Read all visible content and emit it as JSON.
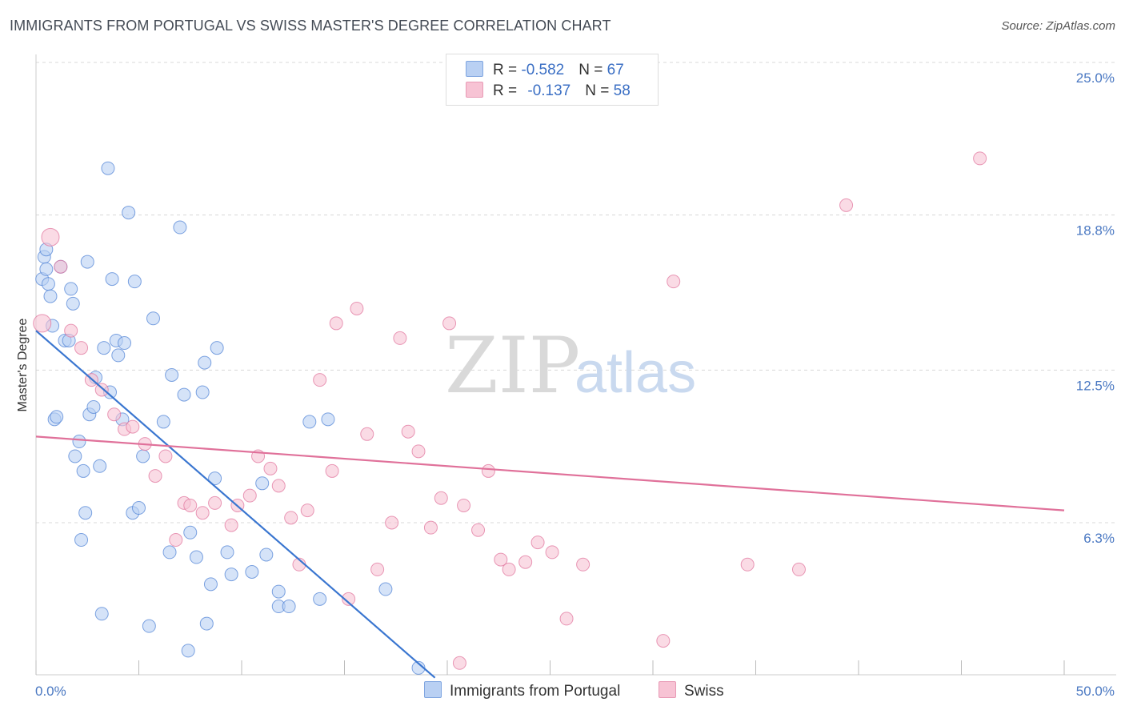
{
  "title": "IMMIGRANTS FROM PORTUGAL VS SWISS MASTER'S DEGREE CORRELATION CHART",
  "source": "Source: ZipAtlas.com",
  "watermark": {
    "zip": "ZIP",
    "atlas": "atlas"
  },
  "colors": {
    "series1": "#4a7fd4",
    "series1_fill": "#b9d0f3",
    "series2": "#e0719a",
    "series2_fill": "#f7c3d4",
    "grid": "#d8d8d8",
    "axis_text": "#4a78c2"
  },
  "legend": {
    "rows": [
      {
        "r_label": "R = ",
        "r_value": "-0.582",
        "n_label": "N = ",
        "n_value": "67"
      },
      {
        "r_label": "R = ",
        "r_value": "-0.137",
        "n_label": "N = ",
        "n_value": "58"
      }
    ]
  },
  "chart_data": {
    "type": "scatter",
    "xlabel": "",
    "ylabel": "Master's Degree",
    "xlim": [
      0,
      50
    ],
    "ylim": [
      0,
      26
    ],
    "x_tick_labels": [
      "0.0%",
      "50.0%"
    ],
    "y_ticks": [
      6.3,
      12.5,
      18.8,
      25.0
    ],
    "y_tick_labels": [
      "6.3%",
      "12.5%",
      "18.8%",
      "25.0%"
    ],
    "grid": "horizontal dashed",
    "legend_placement": "top-center",
    "series": [
      {
        "name": "Immigrants from Portugal",
        "r": -0.582,
        "n": 67,
        "trend": {
          "x": [
            0,
            19.4
          ],
          "y": [
            14.1,
            0
          ]
        },
        "points": [
          [
            0.3,
            16.2
          ],
          [
            0.4,
            17.1
          ],
          [
            0.5,
            17.4
          ],
          [
            0.5,
            16.6
          ],
          [
            0.6,
            16.0
          ],
          [
            0.7,
            15.5
          ],
          [
            0.8,
            14.3
          ],
          [
            0.9,
            10.5
          ],
          [
            1.0,
            10.6
          ],
          [
            1.2,
            16.7
          ],
          [
            1.4,
            13.7
          ],
          [
            1.6,
            13.7
          ],
          [
            1.7,
            15.8
          ],
          [
            1.8,
            15.2
          ],
          [
            1.9,
            9.0
          ],
          [
            2.1,
            9.6
          ],
          [
            2.2,
            5.6
          ],
          [
            2.3,
            8.4
          ],
          [
            2.4,
            6.7
          ],
          [
            2.5,
            16.9
          ],
          [
            2.6,
            10.7
          ],
          [
            2.8,
            11.0
          ],
          [
            2.9,
            12.2
          ],
          [
            3.1,
            8.6
          ],
          [
            3.2,
            2.6
          ],
          [
            3.3,
            13.4
          ],
          [
            3.5,
            20.7
          ],
          [
            3.6,
            11.6
          ],
          [
            3.7,
            16.2
          ],
          [
            3.9,
            13.7
          ],
          [
            4.0,
            13.1
          ],
          [
            4.2,
            10.5
          ],
          [
            4.3,
            13.6
          ],
          [
            4.5,
            18.9
          ],
          [
            4.7,
            6.7
          ],
          [
            4.8,
            16.1
          ],
          [
            5.0,
            6.9
          ],
          [
            5.2,
            9.0
          ],
          [
            5.5,
            2.1
          ],
          [
            5.7,
            14.6
          ],
          [
            6.2,
            10.4
          ],
          [
            6.5,
            5.1
          ],
          [
            6.6,
            12.3
          ],
          [
            7.0,
            18.3
          ],
          [
            7.2,
            11.5
          ],
          [
            7.4,
            1.1
          ],
          [
            7.5,
            5.9
          ],
          [
            7.8,
            4.9
          ],
          [
            8.1,
            11.6
          ],
          [
            8.2,
            12.8
          ],
          [
            8.3,
            2.2
          ],
          [
            8.5,
            3.8
          ],
          [
            8.7,
            8.1
          ],
          [
            8.8,
            13.4
          ],
          [
            9.3,
            5.1
          ],
          [
            9.5,
            4.2
          ],
          [
            10.5,
            4.3
          ],
          [
            11.0,
            7.9
          ],
          [
            11.2,
            5.0
          ],
          [
            11.8,
            3.5
          ],
          [
            11.8,
            2.9
          ],
          [
            12.3,
            2.9
          ],
          [
            13.3,
            10.4
          ],
          [
            13.8,
            3.2
          ],
          [
            14.2,
            10.5
          ],
          [
            17.0,
            3.6
          ],
          [
            18.6,
            0.4
          ]
        ]
      },
      {
        "name": "Swiss",
        "r": -0.137,
        "n": 58,
        "trend": {
          "x": [
            0,
            50
          ],
          "y": [
            9.8,
            6.8
          ]
        },
        "points": [
          [
            0.3,
            14.4
          ],
          [
            0.7,
            17.9
          ],
          [
            1.2,
            16.7
          ],
          [
            1.7,
            14.1
          ],
          [
            2.2,
            13.4
          ],
          [
            2.7,
            12.1
          ],
          [
            3.2,
            11.7
          ],
          [
            3.8,
            10.7
          ],
          [
            4.3,
            10.1
          ],
          [
            4.7,
            10.2
          ],
          [
            5.3,
            9.5
          ],
          [
            5.8,
            8.2
          ],
          [
            6.3,
            9.0
          ],
          [
            6.8,
            5.6
          ],
          [
            7.2,
            7.1
          ],
          [
            7.5,
            7.0
          ],
          [
            8.1,
            6.7
          ],
          [
            8.7,
            7.1
          ],
          [
            9.5,
            6.2
          ],
          [
            9.8,
            7.0
          ],
          [
            10.4,
            7.4
          ],
          [
            10.8,
            9.0
          ],
          [
            11.4,
            8.5
          ],
          [
            11.8,
            7.8
          ],
          [
            12.4,
            6.5
          ],
          [
            12.8,
            4.6
          ],
          [
            13.2,
            6.8
          ],
          [
            13.8,
            12.1
          ],
          [
            14.4,
            8.4
          ],
          [
            14.6,
            14.4
          ],
          [
            15.2,
            3.2
          ],
          [
            15.6,
            15.0
          ],
          [
            16.1,
            9.9
          ],
          [
            16.6,
            4.4
          ],
          [
            17.3,
            6.3
          ],
          [
            17.7,
            13.8
          ],
          [
            18.1,
            10.0
          ],
          [
            18.6,
            9.2
          ],
          [
            19.2,
            6.1
          ],
          [
            19.7,
            7.3
          ],
          [
            20.1,
            14.4
          ],
          [
            20.6,
            0.6
          ],
          [
            20.8,
            7.0
          ],
          [
            21.5,
            6.0
          ],
          [
            22.0,
            8.4
          ],
          [
            22.6,
            4.8
          ],
          [
            23.0,
            4.4
          ],
          [
            23.8,
            4.7
          ],
          [
            24.4,
            5.5
          ],
          [
            25.1,
            5.1
          ],
          [
            25.8,
            2.4
          ],
          [
            26.6,
            4.6
          ],
          [
            30.5,
            1.5
          ],
          [
            31.0,
            16.1
          ],
          [
            34.6,
            4.6
          ],
          [
            37.1,
            4.4
          ],
          [
            39.4,
            19.2
          ],
          [
            45.9,
            21.1
          ]
        ]
      }
    ]
  }
}
